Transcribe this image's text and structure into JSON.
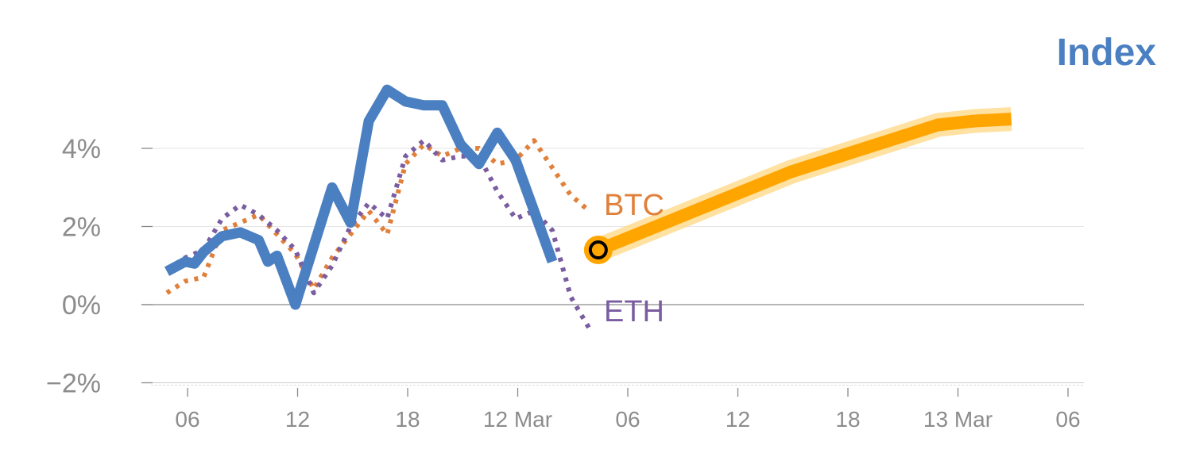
{
  "chart_data": {
    "type": "line",
    "title": "Index",
    "xlabel": "",
    "ylabel": "",
    "ylim": [
      -2,
      6
    ],
    "y_ticks": [
      -2,
      0,
      2,
      4
    ],
    "y_tick_labels": [
      "−2%",
      "0%",
      "2%",
      "4%"
    ],
    "x_tick_labels": [
      "06",
      "12",
      "18",
      "12 Mar",
      "06",
      "12",
      "18",
      "13 Mar",
      "06"
    ],
    "grid": true,
    "series": [
      {
        "name": "",
        "color": "#4a7fc1",
        "style": "solid",
        "x": [
          0,
          1,
          1.5,
          2,
          3,
          4,
          5,
          5.5,
          6,
          7,
          8,
          9,
          10,
          11,
          12,
          13,
          14,
          15,
          16,
          17,
          18,
          19,
          20,
          21,
          22,
          23
        ],
        "y": [
          0.85,
          1.1,
          1.05,
          1.35,
          1.75,
          1.85,
          1.65,
          1.1,
          1.25,
          0.0,
          1.5,
          3.0,
          2.1,
          4.7,
          5.5,
          5.2,
          5.1,
          5.1,
          4.1,
          3.6,
          4.4,
          3.7,
          2.4,
          1.1,
          null,
          null
        ]
      },
      {
        "name": "BTC",
        "color": "#e0803a",
        "style": "dotted",
        "x": [
          0,
          1,
          2,
          3,
          4,
          5,
          6,
          7,
          8,
          9,
          10,
          11,
          12,
          13,
          14,
          15,
          16,
          17,
          18,
          19,
          20,
          21,
          22,
          23
        ],
        "y": [
          0.3,
          0.6,
          0.7,
          1.9,
          2.1,
          2.3,
          1.8,
          1.3,
          0.4,
          1.2,
          1.8,
          2.4,
          1.8,
          3.6,
          4.1,
          3.8,
          4.0,
          4.0,
          3.6,
          3.7,
          4.2,
          3.5,
          2.8,
          2.4
        ]
      },
      {
        "name": "ETH",
        "color": "#7a5da0",
        "style": "dotted",
        "x": [
          0,
          1,
          2,
          3,
          4,
          5,
          6,
          7,
          8,
          9,
          10,
          11,
          12,
          13,
          14,
          15,
          16,
          17,
          18,
          19,
          20,
          21,
          22,
          23
        ],
        "y": [
          0.9,
          1.2,
          1.4,
          2.2,
          2.55,
          2.3,
          1.9,
          1.4,
          0.3,
          1.0,
          2.0,
          2.6,
          2.2,
          3.8,
          4.2,
          3.7,
          3.8,
          3.8,
          2.9,
          2.2,
          2.4,
          1.9,
          0.2,
          -0.6
        ]
      },
      {
        "name": "",
        "color": "#ffa500",
        "style": "projection",
        "x": [
          23.5,
          34,
          42,
          44,
          46
        ],
        "y": [
          1.4,
          3.4,
          4.6,
          4.7,
          4.75
        ]
      }
    ],
    "marker": {
      "x": 23.5,
      "y": 1.4
    },
    "annotations": [
      "BTC",
      "ETH"
    ]
  }
}
